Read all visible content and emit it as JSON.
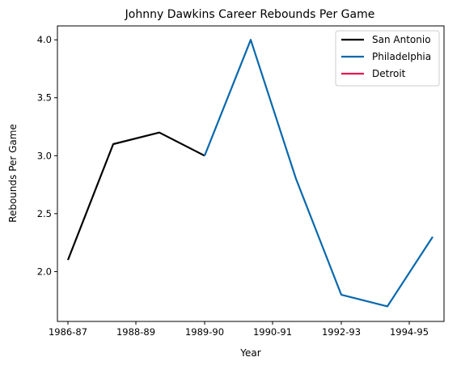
{
  "chart_data": {
    "type": "line",
    "title": "Johnny Dawkins Career Rebounds Per Game",
    "xlabel": "Year",
    "ylabel": "Rebounds Per Game",
    "x_tick_labels": [
      "1986-87",
      "1988-89",
      "1989-90",
      "1990-91",
      "1992-93",
      "1994-95"
    ],
    "ylim": [
      1.57,
      4.12
    ],
    "y_ticks": [
      "2.0",
      "2.5",
      "3.0",
      "3.5",
      "4.0"
    ],
    "grid": false,
    "legend_position": "top-right",
    "legend": [
      "San Antonio",
      "Philadelphia",
      "Detroit"
    ],
    "series": [
      {
        "name": "San Antonio",
        "color": "#000000",
        "points": [
          {
            "x": "1986-87",
            "y": 2.1
          },
          {
            "x": "1987-88",
            "y": 3.1
          },
          {
            "x": "1988-89",
            "y": 3.2
          },
          {
            "x": "1989-90",
            "y": 3.0
          }
        ]
      },
      {
        "name": "Philadelphia",
        "color": "#0868ac",
        "points": [
          {
            "x": "1989-90",
            "y": 3.0
          },
          {
            "x": "1990-91",
            "y": 4.0
          },
          {
            "x": "1991-92",
            "y": 2.8
          },
          {
            "x": "1992-93",
            "y": 1.8
          },
          {
            "x": "1993-94",
            "y": 1.7
          },
          {
            "x": "1994-95",
            "y": 2.3
          }
        ]
      },
      {
        "name": "Detroit",
        "color": "#e8174f",
        "points": []
      }
    ]
  }
}
